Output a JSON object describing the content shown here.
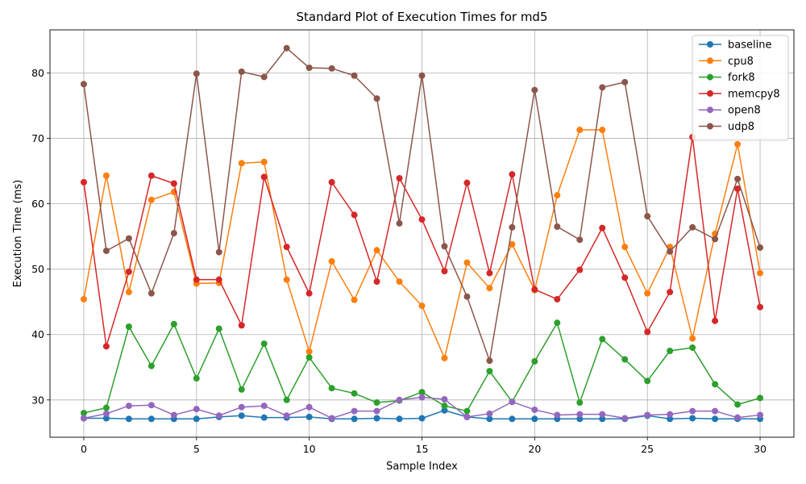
{
  "chart_data": {
    "type": "line",
    "title": "Standard Plot of Execution Times for md5",
    "xlabel": "Sample Index",
    "ylabel": "Execution Time (ms)",
    "xlim": [
      -1.5,
      31.5
    ],
    "ylim": [
      24.3,
      86.6
    ],
    "xticks": [
      0,
      5,
      10,
      15,
      20,
      25,
      30
    ],
    "yticks": [
      30,
      40,
      50,
      60,
      70,
      80
    ],
    "grid": true,
    "legend_position": "top-right",
    "x": [
      0,
      1,
      2,
      3,
      4,
      5,
      6,
      7,
      8,
      9,
      10,
      11,
      12,
      13,
      14,
      15,
      16,
      17,
      18,
      19,
      20,
      21,
      22,
      23,
      24,
      25,
      26,
      27,
      28,
      29,
      30
    ],
    "series": [
      {
        "name": "baseline",
        "color": "#1f77b4",
        "values": [
          27.2,
          27.2,
          27.1,
          27.1,
          27.1,
          27.1,
          27.4,
          27.6,
          27.3,
          27.3,
          27.4,
          27.1,
          27.1,
          27.2,
          27.1,
          27.2,
          28.4,
          27.4,
          27.1,
          27.1,
          27.1,
          27.1,
          27.1,
          27.1,
          27.1,
          27.6,
          27.1,
          27.2,
          27.1,
          27.1,
          27.1
        ]
      },
      {
        "name": "cpu8",
        "color": "#ff7f0e",
        "values": [
          45.4,
          64.3,
          46.5,
          60.6,
          61.8,
          47.8,
          47.9,
          66.2,
          66.4,
          48.4,
          37.4,
          51.2,
          45.3,
          52.9,
          48.1,
          44.4,
          36.4,
          51.0,
          47.1,
          53.8,
          46.8,
          61.3,
          71.3,
          71.3,
          53.4,
          46.3,
          53.4,
          39.4,
          55.4,
          69.1,
          49.4
        ]
      },
      {
        "name": "fork8",
        "color": "#2ca02c",
        "values": [
          28.0,
          28.8,
          41.2,
          35.2,
          41.6,
          33.3,
          40.9,
          31.6,
          38.6,
          30.0,
          36.5,
          31.8,
          31.0,
          29.6,
          29.9,
          31.2,
          29.1,
          28.3,
          34.4,
          29.7,
          35.9,
          41.8,
          29.6,
          39.3,
          36.2,
          32.9,
          37.5,
          38.0,
          32.4,
          29.3,
          30.3
        ]
      },
      {
        "name": "memcpy8",
        "color": "#d62728",
        "values": [
          63.3,
          38.2,
          49.6,
          64.3,
          63.1,
          48.4,
          48.4,
          41.4,
          64.1,
          53.4,
          46.3,
          63.3,
          58.3,
          48.1,
          63.9,
          57.6,
          49.7,
          63.2,
          49.4,
          64.5,
          46.9,
          45.4,
          49.9,
          56.3,
          48.7,
          40.4,
          46.5,
          70.2,
          42.1,
          62.3,
          44.2
        ]
      },
      {
        "name": "open8",
        "color": "#9467bd",
        "values": [
          27.2,
          27.9,
          29.1,
          29.2,
          27.7,
          28.6,
          27.6,
          28.9,
          29.1,
          27.6,
          28.9,
          27.2,
          28.3,
          28.3,
          30.0,
          30.4,
          30.1,
          27.4,
          27.9,
          29.7,
          28.5,
          27.7,
          27.8,
          27.8,
          27.2,
          27.7,
          27.8,
          28.3,
          28.3,
          27.3,
          27.7
        ]
      },
      {
        "name": "udp8",
        "color": "#8c564b",
        "values": [
          78.3,
          52.8,
          54.7,
          46.3,
          55.5,
          79.9,
          52.6,
          80.2,
          79.4,
          83.8,
          80.8,
          80.7,
          79.6,
          76.1,
          57.0,
          79.6,
          53.5,
          45.8,
          36.0,
          56.4,
          77.4,
          56.5,
          54.5,
          77.8,
          78.6,
          58.1,
          52.7,
          56.4,
          54.6,
          63.8,
          53.3
        ]
      }
    ]
  }
}
